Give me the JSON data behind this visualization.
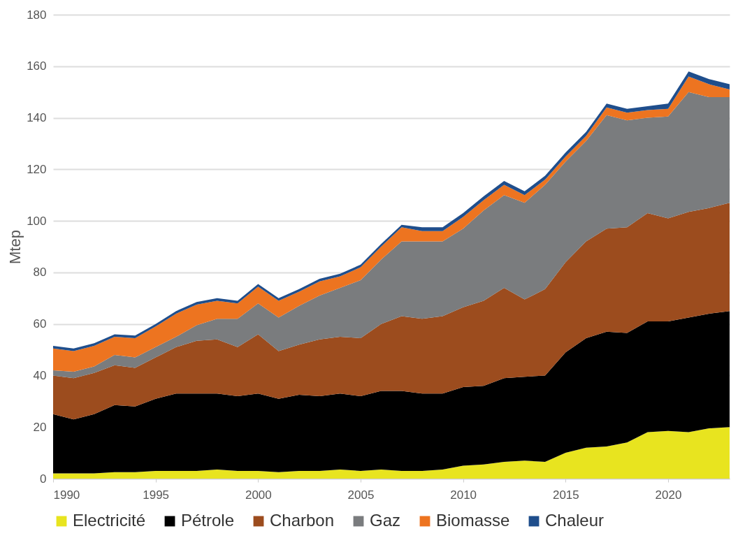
{
  "chart_data": {
    "type": "area",
    "stacked": true,
    "ylabel": "Mtep",
    "x": [
      1990,
      1991,
      1992,
      1993,
      1994,
      1995,
      1996,
      1997,
      1998,
      1999,
      2000,
      2001,
      2002,
      2003,
      2004,
      2005,
      2006,
      2007,
      2008,
      2009,
      2010,
      2011,
      2012,
      2013,
      2014,
      2015,
      2016,
      2017,
      2018,
      2019,
      2020,
      2021,
      2022,
      2023
    ],
    "xlim": [
      1990,
      2023
    ],
    "xticks": [
      1990,
      1995,
      2000,
      2005,
      2010,
      2015,
      2020
    ],
    "ylim": [
      0,
      180
    ],
    "yticks": [
      0,
      20,
      40,
      60,
      80,
      100,
      120,
      140,
      160,
      180
    ],
    "grid": "y",
    "legend": "bottom",
    "series": [
      {
        "name": "Electricité",
        "color": "#e8e41f",
        "values": [
          2,
          2,
          2,
          2.5,
          2.5,
          3,
          3,
          3,
          3.5,
          3,
          3,
          2.5,
          3,
          3,
          3.5,
          3,
          3.5,
          3,
          3,
          3.5,
          5,
          5.5,
          6.5,
          7,
          6.5,
          10,
          12,
          12.5,
          14,
          18,
          18.5,
          18,
          19.5,
          20
        ]
      },
      {
        "name": "Pétrole",
        "color": "#000000",
        "values": [
          23,
          21,
          23,
          26,
          25.5,
          28,
          30,
          30,
          29.5,
          29,
          30,
          28.5,
          29.5,
          29,
          29.5,
          29,
          30.5,
          31,
          30,
          29.5,
          30.5,
          30.5,
          32.5,
          32.5,
          33.5,
          39,
          42.5,
          44.5,
          42.5,
          43,
          42.5,
          44.5,
          44.5,
          45
        ]
      },
      {
        "name": "Charbon",
        "color": "#9c4c1e",
        "values": [
          15,
          16,
          16,
          15.5,
          15,
          16,
          18,
          20.5,
          21,
          19,
          23,
          18.5,
          19.5,
          22,
          22,
          22.5,
          26,
          29,
          29,
          30,
          31,
          33,
          35,
          30,
          33.5,
          35,
          37.5,
          40,
          41,
          42,
          40,
          41,
          41,
          42
        ]
      },
      {
        "name": "Gaz",
        "color": "#7a7c7e",
        "values": [
          2,
          2.5,
          2.5,
          4,
          4,
          4,
          4,
          6,
          8,
          11,
          12,
          13,
          15,
          17,
          19,
          22.5,
          25,
          29,
          30,
          29,
          30.5,
          35,
          36,
          37.5,
          40.5,
          39,
          39,
          44,
          41.5,
          37,
          39.5,
          46.5,
          43,
          41
        ]
      },
      {
        "name": "Biomasse",
        "color": "#ed7420",
        "values": [
          8.5,
          8,
          8,
          7,
          7.5,
          8,
          9,
          8,
          7,
          6,
          6.5,
          6.5,
          5.5,
          5.5,
          4.5,
          5,
          5,
          5.5,
          4,
          4,
          4.5,
          4,
          4,
          3,
          2,
          2,
          2,
          3,
          3,
          3,
          3,
          6,
          5,
          3
        ]
      },
      {
        "name": "Chaleur",
        "color": "#1f4e8c",
        "values": [
          1,
          1,
          1,
          1,
          1,
          1,
          1,
          1,
          1,
          1,
          1,
          1,
          1,
          1,
          1,
          1,
          1,
          1,
          1.5,
          1.5,
          1.5,
          1.5,
          1.5,
          1.5,
          1.5,
          1.5,
          1.5,
          1.5,
          1.5,
          1.5,
          2,
          2,
          2,
          2
        ]
      }
    ]
  }
}
